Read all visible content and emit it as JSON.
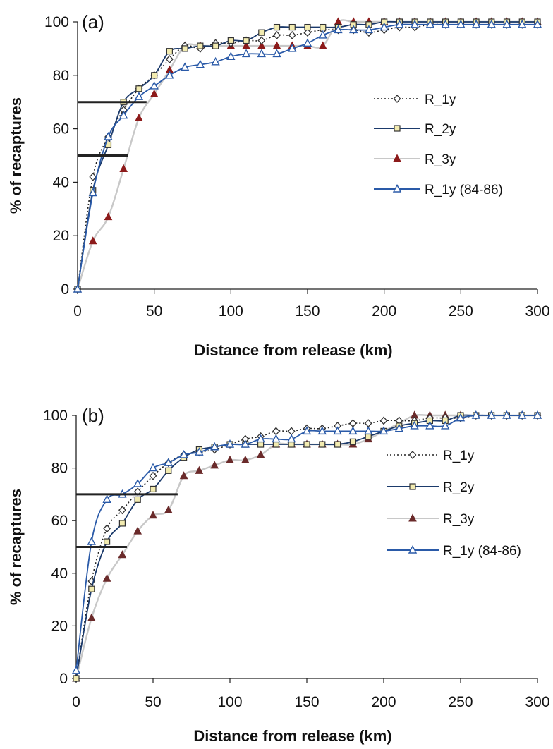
{
  "chart_data": [
    {
      "type": "line",
      "panel_label": "(a)",
      "xlabel": "Distance from release (km)",
      "ylabel": "% of recaptures",
      "xlim": [
        0,
        300
      ],
      "ylim": [
        0,
        100
      ],
      "xticks": [
        "0",
        "50",
        "100",
        "150",
        "200",
        "250",
        "300"
      ],
      "yticks": [
        "0",
        "20",
        "40",
        "60",
        "80",
        "100"
      ],
      "grid": false,
      "legend_position": "right-center",
      "reference_lines": [
        {
          "y": 70,
          "x_start": 0,
          "x_end": 45
        },
        {
          "y": 50,
          "x_start": 0,
          "x_end": 33
        }
      ],
      "series": [
        {
          "name": "R_1y",
          "style": "dotted",
          "marker": "diamond",
          "color": "#222222",
          "marker_fill": "#ffffff",
          "x": [
            0,
            10,
            20,
            30,
            40,
            50,
            60,
            70,
            80,
            90,
            100,
            110,
            120,
            130,
            140,
            150,
            160,
            170,
            180,
            190,
            200,
            210,
            220,
            230,
            240,
            250,
            260,
            270,
            280,
            290,
            300
          ],
          "y": [
            0,
            42,
            57,
            67,
            75,
            80,
            86,
            91,
            90,
            92,
            92,
            93,
            93,
            95,
            95,
            96,
            97,
            97,
            97,
            96,
            97,
            98,
            98,
            99,
            99,
            99,
            99,
            99,
            99,
            99,
            99
          ]
        },
        {
          "name": "R_2y",
          "style": "solid",
          "marker": "square",
          "color": "#1b3a6b",
          "marker_fill": "#f2ebb0",
          "x": [
            0,
            10,
            20,
            30,
            40,
            50,
            60,
            70,
            80,
            90,
            100,
            110,
            120,
            130,
            140,
            150,
            160,
            170,
            180,
            190,
            200,
            210,
            220,
            230,
            240,
            250,
            260,
            270,
            280,
            290,
            300
          ],
          "y": [
            0,
            37,
            54,
            70,
            75,
            80,
            89,
            90,
            91,
            91,
            93,
            93,
            96,
            98,
            98,
            98,
            98,
            98,
            99,
            99,
            100,
            100,
            100,
            100,
            100,
            100,
            100,
            100,
            100,
            100,
            100
          ]
        },
        {
          "name": "R_3y",
          "style": "solid",
          "marker": "triangle",
          "color": "#c8c8c8",
          "marker_fill": "#8c1a1a",
          "x": [
            0,
            10,
            20,
            30,
            40,
            50,
            60,
            70,
            80,
            90,
            100,
            110,
            120,
            130,
            140,
            150,
            160,
            170,
            180,
            190,
            200,
            210,
            220,
            230,
            240,
            250,
            260,
            270,
            280,
            290,
            300
          ],
          "y": [
            0,
            18,
            27,
            45,
            64,
            73,
            82,
            91,
            91,
            91,
            91,
            91,
            91,
            91,
            91,
            91,
            91,
            100,
            100,
            100,
            100,
            100,
            100,
            100,
            100,
            100,
            100,
            100,
            100,
            100,
            100
          ]
        },
        {
          "name": "R_1y (84-86)",
          "style": "solid",
          "marker": "triangle-open",
          "color": "#2a5aa8",
          "marker_fill": "#ffffff",
          "x": [
            0,
            10,
            20,
            30,
            40,
            50,
            60,
            70,
            80,
            90,
            100,
            110,
            120,
            130,
            140,
            150,
            160,
            170,
            180,
            190,
            200,
            210,
            220,
            230,
            240,
            250,
            260,
            270,
            280,
            290,
            300
          ],
          "y": [
            0,
            36,
            57,
            65,
            72,
            76,
            80,
            83,
            84,
            85,
            87,
            88,
            88,
            88,
            90,
            92,
            95,
            97,
            97,
            97,
            98,
            99,
            99,
            99,
            99,
            99,
            99,
            99,
            99,
            99,
            99
          ]
        }
      ]
    },
    {
      "type": "line",
      "panel_label": "(b)",
      "xlabel": "Distance from release (km)",
      "ylabel": "% of recaptures",
      "xlim": [
        0,
        300
      ],
      "ylim": [
        0,
        100
      ],
      "xticks": [
        "0",
        "50",
        "100",
        "150",
        "200",
        "250",
        "300"
      ],
      "yticks": [
        "0",
        "20",
        "40",
        "60",
        "80",
        "100"
      ],
      "grid": false,
      "legend_position": "right-center",
      "reference_lines": [
        {
          "y": 70,
          "x_start": 0,
          "x_end": 66
        },
        {
          "y": 50,
          "x_start": 0,
          "x_end": 33
        }
      ],
      "series": [
        {
          "name": "R_1y",
          "style": "dotted",
          "marker": "diamond",
          "color": "#222222",
          "marker_fill": "#ffffff",
          "x": [
            0,
            10,
            20,
            30,
            40,
            50,
            60,
            70,
            80,
            90,
            100,
            110,
            120,
            130,
            140,
            150,
            160,
            170,
            180,
            190,
            200,
            210,
            220,
            230,
            240,
            250,
            260,
            270,
            280,
            290,
            300
          ],
          "y": [
            0,
            37,
            57,
            64,
            71,
            77,
            82,
            85,
            86,
            87,
            89,
            91,
            92,
            94,
            94,
            95,
            95,
            96,
            97,
            97,
            98,
            98,
            98,
            99,
            99,
            99,
            100,
            100,
            100,
            100,
            100
          ]
        },
        {
          "name": "R_2y",
          "style": "solid",
          "marker": "square",
          "color": "#1b3a6b",
          "marker_fill": "#f2ebb0",
          "x": [
            0,
            10,
            20,
            30,
            40,
            50,
            60,
            70,
            80,
            90,
            100,
            110,
            120,
            130,
            140,
            150,
            160,
            170,
            180,
            190,
            200,
            210,
            220,
            230,
            240,
            250,
            260,
            270,
            280,
            290,
            300
          ],
          "y": [
            0,
            34,
            52,
            59,
            68,
            72,
            79,
            84,
            87,
            88,
            89,
            89,
            89,
            89,
            89,
            89,
            89,
            89,
            90,
            92,
            94,
            96,
            97,
            98,
            98,
            100,
            100,
            100,
            100,
            100,
            100
          ]
        },
        {
          "name": "R_3y",
          "style": "solid",
          "marker": "triangle",
          "color": "#c8c8c8",
          "marker_fill": "#6a2a2a",
          "x": [
            0,
            10,
            20,
            30,
            40,
            50,
            60,
            70,
            80,
            90,
            100,
            110,
            120,
            130,
            140,
            150,
            160,
            170,
            180,
            190,
            200,
            210,
            220,
            230,
            240,
            250,
            260,
            270,
            280,
            290,
            300
          ],
          "y": [
            0,
            23,
            38,
            47,
            56,
            62,
            64,
            77,
            79,
            81,
            83,
            83,
            85,
            89,
            89,
            89,
            89,
            89,
            89,
            91,
            94,
            97,
            100,
            100,
            100,
            100,
            100,
            100,
            100,
            100,
            100
          ]
        },
        {
          "name": "R_1y (84-86)",
          "style": "solid",
          "marker": "triangle-open",
          "color": "#2a5aa8",
          "marker_fill": "#ffffff",
          "x": [
            0,
            10,
            20,
            30,
            40,
            50,
            60,
            70,
            80,
            90,
            100,
            110,
            120,
            130,
            140,
            150,
            160,
            170,
            180,
            190,
            200,
            210,
            220,
            230,
            240,
            250,
            260,
            270,
            280,
            290,
            300
          ],
          "y": [
            3,
            52,
            68,
            70,
            74,
            80,
            82,
            85,
            86,
            88,
            89,
            89,
            91,
            91,
            91,
            94,
            94,
            94,
            94,
            94,
            94,
            95,
            96,
            96,
            96,
            99,
            100,
            100,
            100,
            100,
            100
          ]
        }
      ]
    }
  ]
}
